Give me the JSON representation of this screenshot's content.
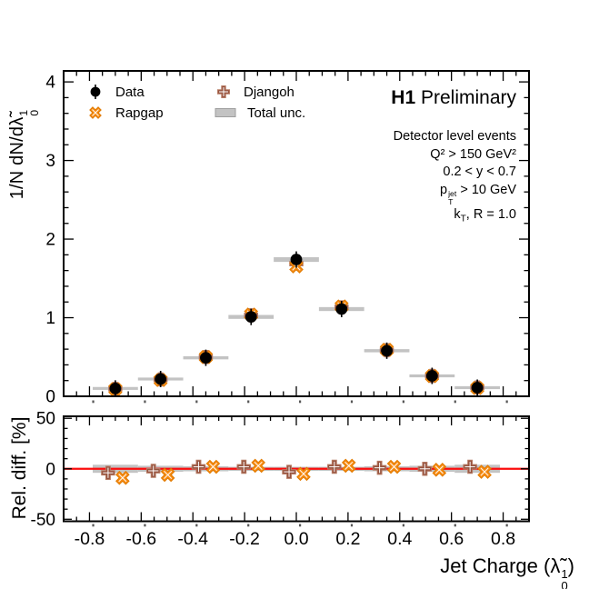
{
  "header": {
    "experiment": "H1",
    "status": " Preliminary"
  },
  "legend": {
    "items": [
      {
        "id": "data",
        "label": "Data"
      },
      {
        "id": "rapgap",
        "label": "Rapgap"
      },
      {
        "id": "djangoh",
        "label": "Djangoh"
      },
      {
        "id": "totalunc",
        "label": "Total unc."
      }
    ]
  },
  "info": {
    "line1": "Detector level events",
    "line2": "Q² > 150 GeV²",
    "line3": "0.2 < y < 0.7",
    "line4_base": "p",
    "line4_sup": "jet",
    "line4_sub": "T",
    "line4_rest": " > 10 GeV",
    "line5_base": "k",
    "line5_sub": "T",
    "line5_rest": ", R = 1.0"
  },
  "axes": {
    "ylabel_main_prefix": "1/N dN/d",
    "lambda": "λ̃",
    "lambda_sup": "1",
    "lambda_sub": "0",
    "ylabel_ratio": "Rel. diff. [%]",
    "xlabel_prefix": "Jet Charge (",
    "xlabel_suffix": ")"
  },
  "colors": {
    "data": "#000000",
    "rapgap": "#f78b12",
    "rapgap_edge": "#e07a00",
    "djangoh": "#96523e",
    "djangoh_edge": "#b67b64",
    "band": "#c3c3c3",
    "band_edge": "#9e9e9e",
    "refline": "#fb0d0d"
  },
  "chart_data": {
    "type": "scatter",
    "title": "H1 Preliminary — jet charge distribution, detector level events",
    "x": {
      "label": "Jet Charge (λ̃¹₀)",
      "lim": [
        -0.9,
        0.9
      ],
      "bin_centers": [
        -0.7,
        -0.525,
        -0.35,
        -0.175,
        0.0,
        0.175,
        0.35,
        0.525,
        0.7
      ],
      "bin_half_width": 0.0875,
      "major_ticks": [
        -0.8,
        -0.6,
        -0.4,
        -0.2,
        0.0,
        0.2,
        0.4,
        0.6,
        0.8
      ],
      "tick_labels": [
        "-0.8",
        "-0.6",
        "-0.4",
        "-0.2",
        "0.0",
        "0.2",
        "0.4",
        "0.6",
        "0.8"
      ],
      "minor_step": 0.05
    },
    "panels": [
      {
        "name": "distribution",
        "ylabel": "1/N dN/dλ̃¹₀",
        "ylim": [
          0,
          4.14
        ],
        "major_ticks": [
          0,
          1,
          2,
          3,
          4
        ],
        "tick_labels": [
          "0",
          "1",
          "2",
          "3",
          "4"
        ],
        "minor_step": 0.2,
        "grid": false,
        "legend_position": "top-left",
        "series": [
          {
            "name": "Data",
            "marker": "filled-circle",
            "values": [
              0.1,
              0.22,
              0.49,
              1.01,
              1.74,
              1.11,
              0.58,
              0.26,
              0.11
            ]
          },
          {
            "name": "Rapgap",
            "marker": "x-cross",
            "rel_diff_pct": [
              -9,
              -6,
              2,
              3,
              -5,
              3,
              2,
              -1,
              -3
            ]
          },
          {
            "name": "Djangoh",
            "marker": "plus-cross",
            "rel_diff_pct": [
              -4,
              -2,
              2,
              2,
              -3,
              2,
              1,
              0,
              2
            ]
          },
          {
            "name": "Total unc.",
            "marker": "band",
            "half_width_values": [
              0.012,
              0.015,
              0.02,
              0.025,
              0.03,
              0.025,
              0.02,
              0.015,
              0.012
            ]
          }
        ]
      },
      {
        "name": "relative-difference",
        "ylabel": "Rel. diff. [%]",
        "ylim": [
          -52,
          52
        ],
        "major_ticks": [
          50,
          0,
          -50
        ],
        "tick_labels": [
          "50",
          "0",
          "-50"
        ],
        "minor_step": 10,
        "refline": 0,
        "series": [
          {
            "name": "Djangoh",
            "pct": [
              -4,
              -2,
              2,
              2,
              -3,
              2,
              1,
              0,
              2
            ],
            "x_offset": -0.028
          },
          {
            "name": "Rapgap",
            "pct": [
              -9,
              -6,
              2,
              3,
              -5,
              3,
              2,
              -1,
              -3
            ],
            "x_offset": 0.028
          },
          {
            "name": "Total unc.",
            "half_pct": [
              4,
              3,
              2.5,
              2,
              2,
              2,
              2.5,
              3,
              4
            ]
          }
        ]
      }
    ]
  }
}
